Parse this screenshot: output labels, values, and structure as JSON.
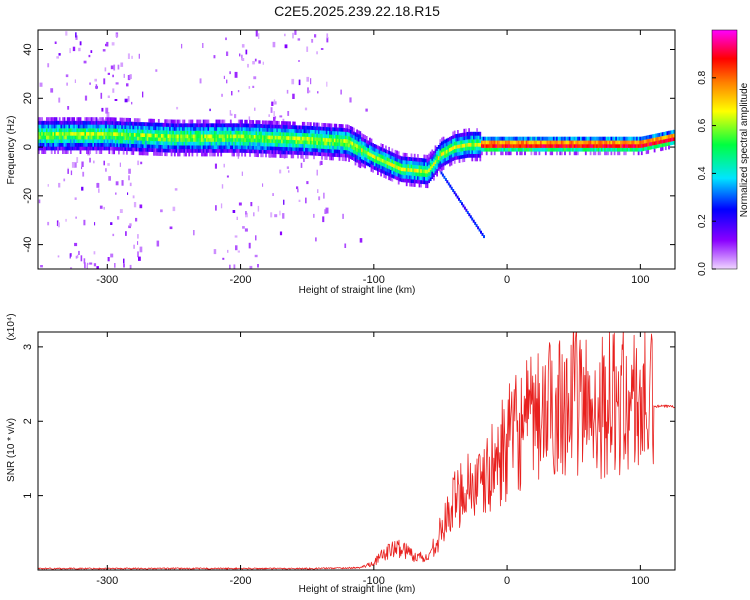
{
  "title": "C2E5.2025.239.22.18.R15",
  "chart_data": [
    {
      "type": "heatmap",
      "title": "C2E5.2025.239.22.18.R15",
      "xlabel": "Height of straight line (km)",
      "ylabel": "Frequency (Hz)",
      "xlim": [
        -352,
        126
      ],
      "ylim": [
        -50,
        48
      ],
      "x_ticks": [
        -300,
        -200,
        -100,
        0,
        100
      ],
      "y_ticks": [
        -40,
        -20,
        0,
        20,
        40
      ],
      "colorbar": {
        "label": "Normalized spectral amplitude",
        "range": [
          0,
          1
        ],
        "ticks": [
          0.0,
          0.2,
          0.4,
          0.6,
          0.8
        ],
        "tick_labels": [
          "0.0",
          "0.2",
          "0.4",
          "0.6",
          "0.8"
        ],
        "colormap": [
          "#f0d6ff",
          "#8a00ff",
          "#0000ff",
          "#00e5ff",
          "#00ff40",
          "#ffff00",
          "#ff8000",
          "#ff0000",
          "#ff00ff"
        ]
      },
      "ridge": {
        "x": [
          -352,
          -300,
          -250,
          -200,
          -150,
          -120,
          -100,
          -80,
          -60,
          -50,
          -40,
          -30,
          -20,
          0,
          50,
          100,
          126
        ],
        "y": [
          5,
          5,
          4,
          4,
          3,
          2,
          -4,
          -9,
          -10,
          -3,
          0,
          1,
          1,
          1,
          1,
          1,
          4
        ]
      }
    },
    {
      "type": "line",
      "xlabel": "Height of straight line (km)",
      "ylabel": "SNR (10 * v/v)",
      "scale_label": "(x10⁴)",
      "xlim": [
        -352,
        126
      ],
      "ylim": [
        0,
        3.2
      ],
      "x_ticks": [
        -300,
        -200,
        -100,
        0,
        100
      ],
      "y_ticks": [
        1,
        2,
        3
      ],
      "series_color": "#e8201e",
      "envelope": {
        "x": [
          -352,
          -150,
          -110,
          -100,
          -90,
          -80,
          -70,
          -60,
          -50,
          -40,
          -30,
          -20,
          -10,
          0,
          10,
          20,
          30,
          40,
          50,
          60,
          80,
          100,
          110,
          126
        ],
        "y": [
          0.02,
          0.02,
          0.03,
          0.1,
          0.25,
          0.3,
          0.2,
          0.15,
          0.5,
          0.9,
          1.2,
          1.1,
          1.4,
          1.7,
          1.9,
          2.0,
          2.1,
          2.3,
          2.3,
          2.2,
          2.25,
          2.25,
          2.2,
          2.2
        ]
      }
    }
  ]
}
